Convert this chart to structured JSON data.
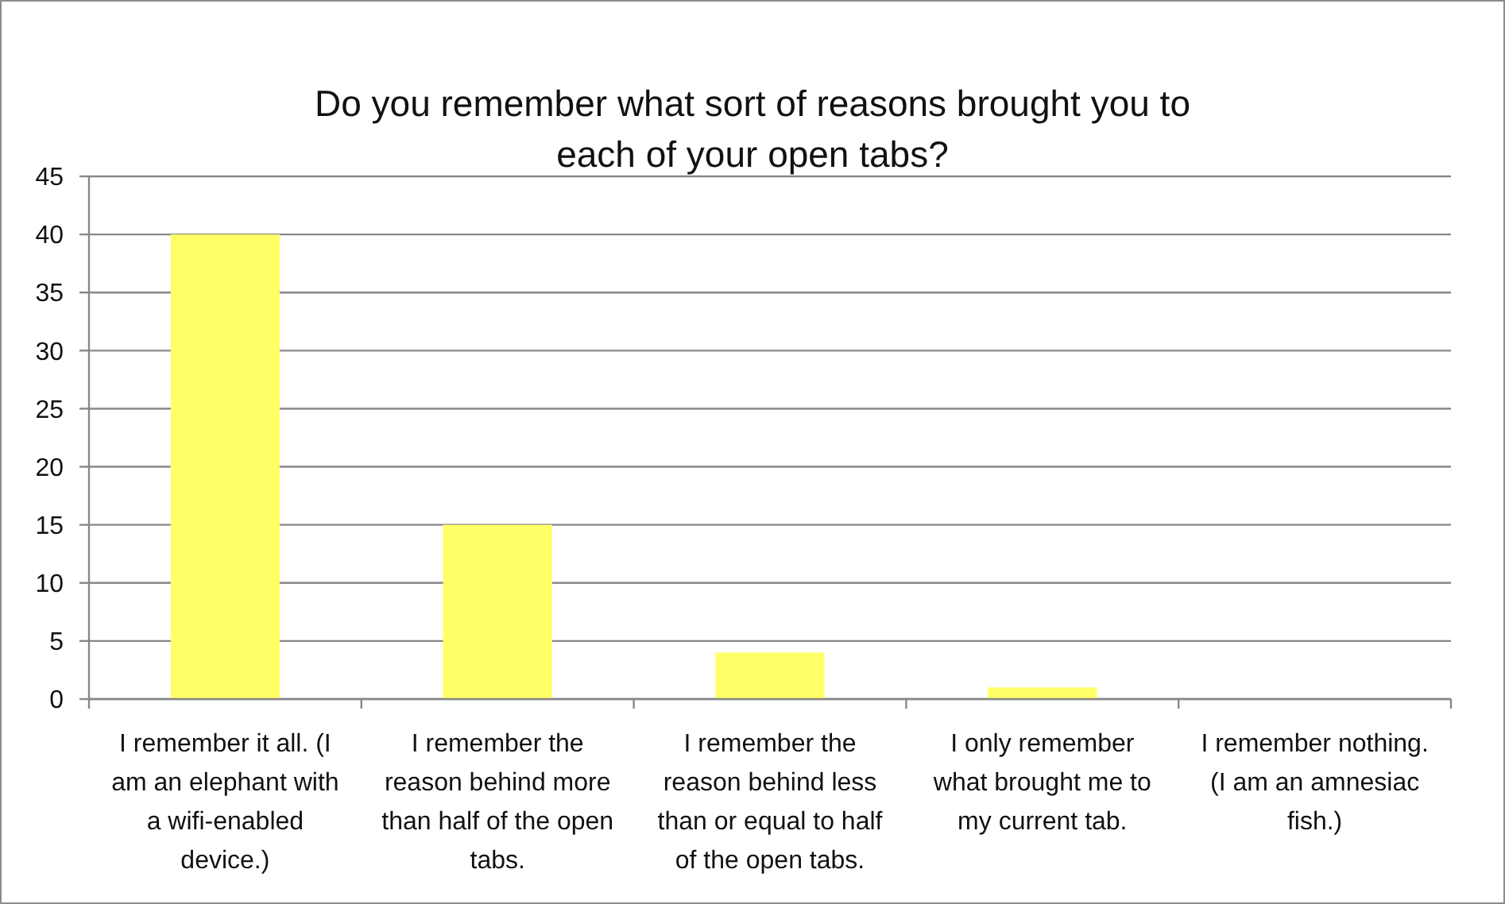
{
  "chart_data": {
    "type": "bar",
    "title": "Do you remember what sort of reasons brought you to each of your open tabs?",
    "categories": [
      "I remember it all. (I am an elephant with a wifi-enabled device.)",
      "I remember the reason behind more than half of the open tabs.",
      "I remember the reason behind less than or equal to half of the open tabs.",
      "I only remember what brought me to my current tab.",
      "I remember nothing. (I am an amnesiac fish.)"
    ],
    "values": [
      40,
      15,
      4,
      1,
      0
    ],
    "color": "#ffff66",
    "ylim": [
      0,
      45
    ],
    "yticks": [
      0,
      5,
      10,
      15,
      20,
      25,
      30,
      35,
      40,
      45
    ],
    "grid": "y"
  }
}
